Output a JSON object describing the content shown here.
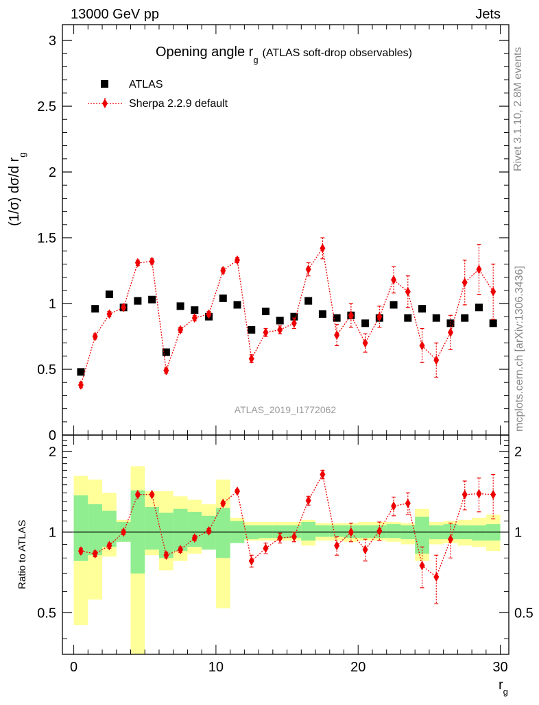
{
  "header": {
    "left": "13000 GeV pp",
    "right": "Jets"
  },
  "side_labels": {
    "rivet": "Rivet 3.1.10,  2.8M events",
    "source": "mcplots.cern.ch [arXiv:1306.3436]"
  },
  "chart_data": [
    {
      "type": "scatter",
      "panel": "main",
      "title": "Opening angle r",
      "title_subscript": "g",
      "subtitle": "(ATLAS soft-drop observables)",
      "ylabel": "(1/σ) dσ/d r",
      "ylabel_subscript": "g",
      "watermark": "ATLAS_2019_I1772062",
      "xlim": [
        -0.8,
        30.6
      ],
      "ylim": [
        0,
        3.12
      ],
      "y_ticks": [
        0,
        0.5,
        1,
        1.5,
        2,
        2.5,
        3
      ],
      "y_tick_labels": [
        "0",
        "0.5",
        "1",
        "1.5",
        "2",
        "2.5",
        "3"
      ],
      "legend_position": "top-left",
      "x": [
        0.5,
        1.5,
        2.5,
        3.5,
        4.5,
        5.5,
        6.5,
        7.5,
        8.5,
        9.5,
        10.5,
        11.5,
        12.5,
        13.5,
        14.5,
        15.5,
        16.5,
        17.5,
        18.5,
        19.5,
        20.5,
        21.5,
        22.5,
        23.5,
        24.5,
        25.5,
        26.5,
        27.5,
        28.5,
        29.5
      ],
      "series": [
        {
          "name": "ATLAS",
          "marker": "square",
          "color": "#000000",
          "values": [
            0.48,
            0.96,
            1.07,
            0.97,
            1.02,
            1.03,
            0.63,
            0.98,
            0.95,
            0.9,
            1.04,
            0.99,
            0.8,
            0.94,
            0.87,
            0.9,
            1.02,
            0.92,
            0.89,
            0.91,
            0.85,
            0.89,
            0.99,
            0.89,
            0.96,
            0.89,
            0.85,
            0.89,
            0.97,
            0.85
          ]
        },
        {
          "name": "Sherpa 2.2.9 default",
          "marker": "diamond",
          "line": "dotted",
          "color": "#ee0000",
          "values": [
            0.38,
            0.75,
            0.92,
            0.97,
            1.31,
            1.32,
            0.49,
            0.8,
            0.89,
            0.92,
            1.25,
            1.33,
            0.58,
            0.78,
            0.8,
            0.85,
            1.26,
            1.42,
            0.76,
            0.91,
            0.7,
            0.9,
            1.18,
            1.09,
            0.68,
            0.57,
            0.78,
            1.16,
            1.26,
            1.09
          ],
          "errors": [
            0.02,
            0.02,
            0.02,
            0.02,
            0.02,
            0.02,
            0.02,
            0.02,
            0.02,
            0.02,
            0.02,
            0.02,
            0.03,
            0.03,
            0.03,
            0.04,
            0.05,
            0.08,
            0.08,
            0.09,
            0.07,
            0.08,
            0.1,
            0.12,
            0.13,
            0.13,
            0.13,
            0.17,
            0.19,
            0.21
          ]
        }
      ]
    },
    {
      "type": "scatter",
      "panel": "ratio",
      "ylabel": "Ratio to ATLAS",
      "xlabel": "r",
      "xlabel_subscript": "g",
      "xlim": [
        -0.8,
        30.6
      ],
      "ylim": [
        0.35,
        2.3
      ],
      "y_ticks": [
        0.5,
        1,
        2
      ],
      "y_tick_labels": [
        "0.5",
        "1",
        "2"
      ],
      "x_ticks": [
        0,
        10,
        20,
        30
      ],
      "x_tick_labels": [
        "0",
        "10",
        "20",
        "30"
      ],
      "reference_line": 1,
      "band_edges": [
        0,
        1,
        2,
        3,
        4,
        5,
        6,
        7,
        8,
        9,
        10,
        11,
        12,
        13,
        14,
        15,
        16,
        17,
        18,
        19,
        20,
        21,
        22,
        23,
        24,
        25,
        26,
        27,
        28,
        29,
        30
      ],
      "band_inner": {
        "color": "#90ee90",
        "low": [
          0.78,
          0.82,
          0.88,
          0.92,
          0.7,
          0.86,
          0.8,
          0.85,
          0.88,
          0.86,
          0.8,
          0.91,
          0.94,
          0.95,
          0.95,
          0.95,
          0.93,
          0.96,
          0.96,
          0.95,
          0.95,
          0.95,
          0.95,
          0.94,
          0.83,
          0.94,
          0.94,
          0.94,
          0.93,
          0.93
        ],
        "high": [
          1.37,
          1.27,
          1.2,
          1.09,
          1.43,
          1.24,
          1.18,
          1.22,
          1.19,
          1.15,
          1.23,
          1.1,
          1.06,
          1.06,
          1.06,
          1.06,
          1.09,
          1.06,
          1.06,
          1.06,
          1.06,
          1.06,
          1.07,
          1.06,
          1.14,
          1.06,
          1.07,
          1.06,
          1.06,
          1.07
        ]
      },
      "band_outer": {
        "color": "#ffff99",
        "low": [
          0.45,
          0.56,
          0.81,
          0.92,
          0.35,
          0.82,
          0.72,
          0.78,
          0.83,
          0.87,
          0.52,
          0.93,
          0.93,
          0.93,
          0.93,
          0.93,
          0.89,
          0.93,
          0.93,
          0.92,
          0.93,
          0.93,
          0.92,
          0.9,
          0.78,
          0.9,
          0.91,
          0.89,
          0.88,
          0.85
        ],
        "high": [
          1.62,
          1.57,
          1.4,
          1.11,
          1.76,
          1.42,
          1.42,
          1.36,
          1.32,
          1.27,
          1.57,
          1.13,
          1.09,
          1.09,
          1.09,
          1.09,
          1.11,
          1.08,
          1.08,
          1.08,
          1.09,
          1.09,
          1.09,
          1.08,
          1.22,
          1.09,
          1.1,
          1.11,
          1.13,
          1.16
        ]
      },
      "x": [
        0.5,
        1.5,
        2.5,
        3.5,
        4.5,
        5.5,
        6.5,
        7.5,
        8.5,
        9.5,
        10.5,
        11.5,
        12.5,
        13.5,
        14.5,
        15.5,
        16.5,
        17.5,
        18.5,
        19.5,
        20.5,
        21.5,
        22.5,
        23.5,
        24.5,
        25.5,
        26.5,
        27.5,
        28.5,
        29.5
      ],
      "series": [
        {
          "name": "Sherpa 2.2.9 default",
          "marker": "diamond",
          "line": "dotted",
          "color": "#ee0000",
          "values": [
            0.85,
            0.83,
            0.89,
            1.0,
            1.38,
            1.38,
            0.82,
            0.86,
            0.95,
            1.01,
            1.28,
            1.42,
            0.78,
            0.87,
            0.95,
            0.96,
            1.31,
            1.64,
            0.89,
            1.0,
            0.86,
            1.01,
            1.25,
            1.28,
            0.75,
            0.68,
            0.94,
            1.38,
            1.39,
            1.38
          ],
          "errors": [
            0.02,
            0.02,
            0.02,
            0.02,
            0.02,
            0.02,
            0.02,
            0.02,
            0.02,
            0.02,
            0.02,
            0.02,
            0.04,
            0.04,
            0.04,
            0.04,
            0.05,
            0.06,
            0.07,
            0.08,
            0.08,
            0.08,
            0.1,
            0.12,
            0.13,
            0.14,
            0.14,
            0.17,
            0.2,
            0.26
          ]
        }
      ]
    }
  ]
}
